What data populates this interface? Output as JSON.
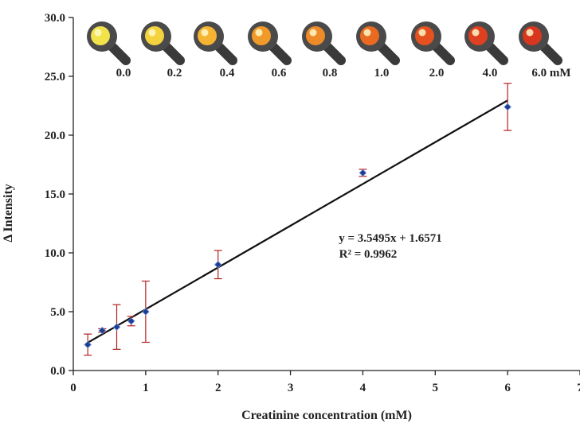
{
  "chart_data": {
    "type": "scatter",
    "xlabel": "Creatinine concentration (mM)",
    "ylabel": "Δ Intensity",
    "xlim": [
      0,
      7
    ],
    "ylim": [
      0,
      30
    ],
    "x_ticks": [
      "0",
      "1",
      "2",
      "3",
      "4",
      "5",
      "6",
      "7"
    ],
    "y_ticks": [
      "0.0",
      "5.0",
      "10.0",
      "15.0",
      "20.0",
      "25.0",
      "30.0"
    ],
    "grid": false,
    "series": [
      {
        "x": [
          0.2,
          0.4,
          0.6,
          0.8,
          1.0,
          2.0,
          4.0,
          6.0
        ],
        "y": [
          2.2,
          3.4,
          3.7,
          4.2,
          5.0,
          9.0,
          16.8,
          22.4
        ],
        "error": [
          0.9,
          0.15,
          1.9,
          0.4,
          2.6,
          1.2,
          0.3,
          2.0
        ],
        "marker_color": "#1f3d8f",
        "error_color": "#b22222"
      }
    ],
    "trendline": {
      "slope": 3.5495,
      "intercept": 1.6571,
      "x_range": [
        0.2,
        6.0
      ],
      "color": "#111111"
    },
    "annotations": {
      "equation": "y = 3.5495x + 1.6571",
      "r_squared": "R² = 0.9962"
    },
    "inset": {
      "labels": [
        "0.0",
        "0.2",
        "0.4",
        "0.6",
        "0.8",
        "1.0",
        "2.0",
        "4.0",
        "6.0 mM"
      ],
      "spot_colors": [
        "#f2e34a",
        "#f4d23e",
        "#f5b431",
        "#f19a2a",
        "#ee8a28",
        "#ea6a22",
        "#e5511f",
        "#df4020",
        "#d8361f"
      ]
    }
  }
}
